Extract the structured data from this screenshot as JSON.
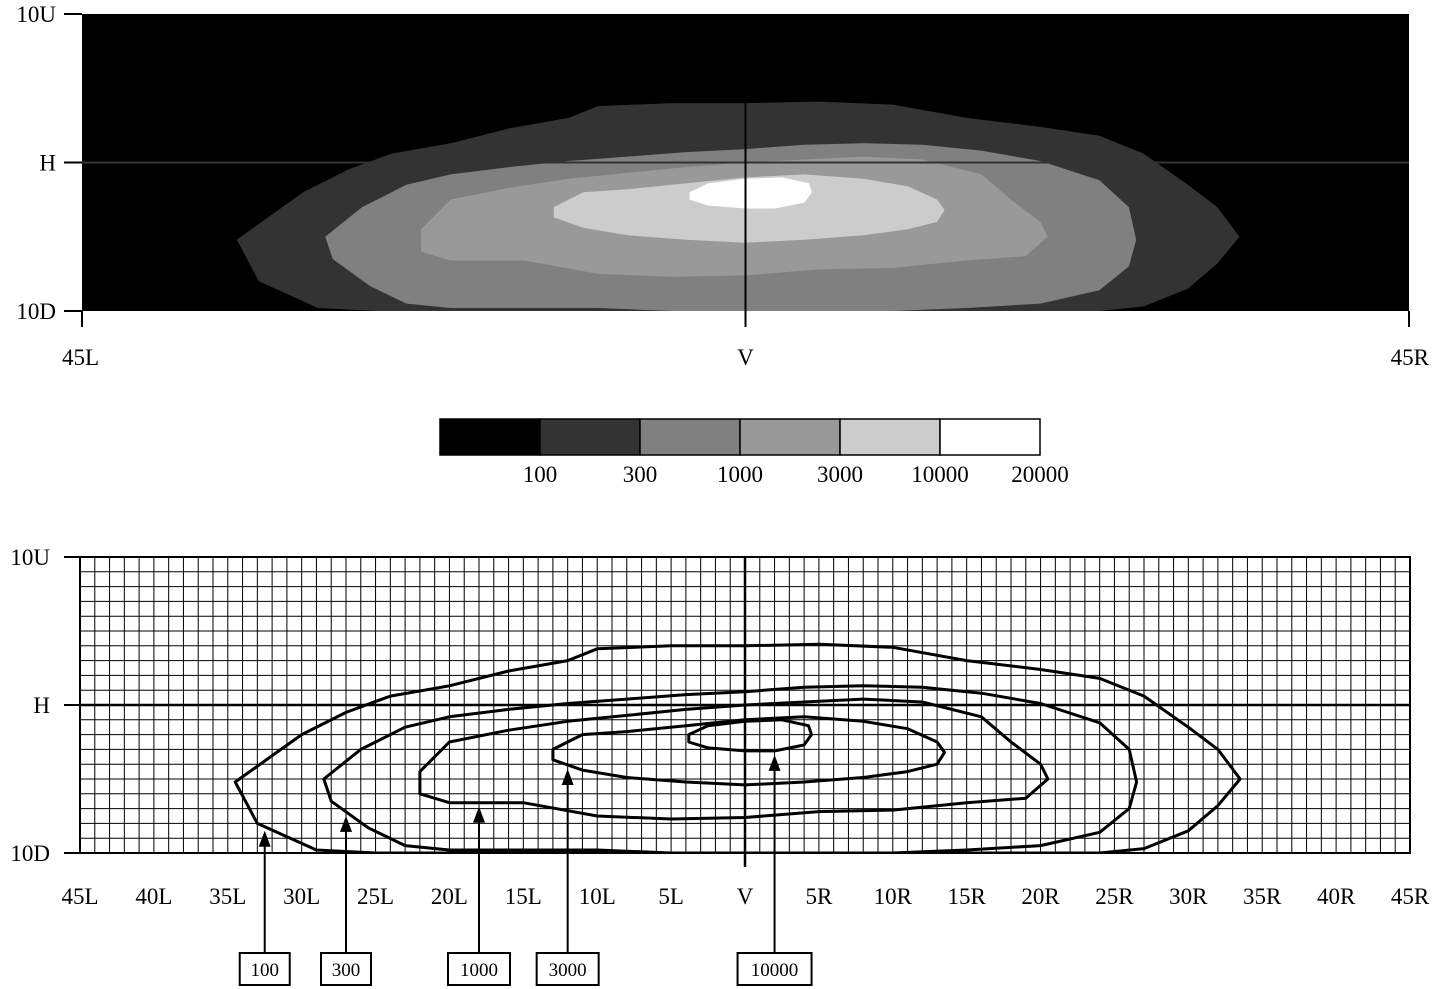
{
  "chart_data": [
    {
      "type": "heatmap",
      "title": "",
      "xlabel": "",
      "ylabel": "",
      "x_range_deg": [
        -45,
        45
      ],
      "y_range_deg": [
        -10,
        10
      ],
      "x_tick_labels": [
        "45L",
        "V",
        "45R"
      ],
      "y_tick_labels": [
        "10U",
        "H",
        "10D"
      ],
      "color_scale": {
        "thresholds": [
          "100",
          "300",
          "1000",
          "3000",
          "10000",
          "20000"
        ],
        "colors": [
          "#000000",
          "#333333",
          "#808080",
          "#999999",
          "#cccccc",
          "#ffffff"
        ]
      },
      "levels": [
        {
          "value": 100,
          "color": "#333333",
          "x": [
            -34.5,
            -30,
            -27,
            -24,
            -20,
            -16,
            -12,
            -10,
            -5,
            0,
            5,
            10,
            15,
            20,
            24,
            27,
            30,
            32,
            33.5,
            32,
            30,
            27,
            24,
            20,
            15,
            10,
            5,
            0,
            -5,
            -10,
            -15,
            -20,
            -25,
            -29,
            -33
          ],
          "y": [
            -5.2,
            -2.0,
            -0.5,
            0.6,
            1.3,
            2.3,
            3.0,
            3.8,
            4.0,
            4.0,
            4.1,
            3.9,
            3.0,
            2.4,
            1.8,
            0.6,
            -1.5,
            -3.0,
            -5.0,
            -6.8,
            -8.5,
            -9.7,
            -10,
            -10,
            -10,
            -10,
            -10,
            -10,
            -10,
            -10,
            -10,
            -10,
            -10,
            -9.8,
            -8.0
          ]
        },
        {
          "value": 300,
          "color": "#808080",
          "x": [
            -28.5,
            -26,
            -23,
            -20,
            -16,
            -12,
            -8,
            -4,
            0,
            4,
            8,
            12,
            16,
            20,
            24,
            26,
            26.5,
            26,
            24,
            20,
            15,
            10,
            5,
            0,
            -5,
            -10,
            -15,
            -20,
            -23,
            -25.5,
            -28
          ],
          "y": [
            -5.0,
            -3.0,
            -1.5,
            -0.8,
            -0.3,
            0.1,
            0.4,
            0.7,
            0.9,
            1.2,
            1.3,
            1.2,
            0.8,
            0.1,
            -1.2,
            -3.0,
            -5.2,
            -7.0,
            -8.6,
            -9.5,
            -9.8,
            -10,
            -10,
            -10,
            -10,
            -9.8,
            -9.8,
            -9.8,
            -9.5,
            -8.3,
            -6.5
          ]
        },
        {
          "value": 1000,
          "color": "#999999",
          "x": [
            -22,
            -20,
            -16,
            -12,
            -8,
            -4,
            0,
            4,
            8,
            12,
            16,
            18,
            20,
            20.5,
            19,
            15,
            10,
            5,
            0,
            -5,
            -10,
            -15,
            -20,
            -22
          ],
          "y": [
            -4.5,
            -2.5,
            -1.7,
            -1.1,
            -0.7,
            -0.3,
            0.0,
            0.2,
            0.4,
            0.2,
            -0.8,
            -2.5,
            -4.0,
            -5.0,
            -6.3,
            -6.6,
            -7.1,
            -7.2,
            -7.6,
            -7.7,
            -7.5,
            -6.6,
            -6.6,
            -6.0
          ]
        },
        {
          "value": 3000,
          "color": "#cccccc",
          "x": [
            -13,
            -11,
            -8,
            -4,
            0,
            4,
            8,
            11,
            13,
            13.5,
            13,
            11,
            8,
            4,
            0,
            -4,
            -8,
            -11,
            -13
          ],
          "y": [
            -3.0,
            -2.0,
            -1.8,
            -1.4,
            -1.0,
            -0.8,
            -1.1,
            -1.6,
            -2.5,
            -3.2,
            -4.0,
            -4.5,
            -4.9,
            -5.2,
            -5.4,
            -5.2,
            -4.9,
            -4.4,
            -3.7
          ]
        },
        {
          "value": 10000,
          "color": "#ffffff",
          "x": [
            -3.8,
            -2.5,
            0,
            2.5,
            4.3,
            4.5,
            4.0,
            2.0,
            0,
            -2.5,
            -3.8
          ],
          "y": [
            -2.0,
            -1.4,
            -1.1,
            -1.0,
            -1.4,
            -2.0,
            -2.7,
            -3.1,
            -3.1,
            -2.9,
            -2.5
          ]
        }
      ]
    },
    {
      "type": "contour",
      "title": "",
      "xlabel": "",
      "ylabel": "",
      "x_range_deg": [
        -45,
        45
      ],
      "y_range_deg": [
        -10,
        10
      ],
      "x_tick_labels": [
        "45L",
        "40L",
        "35L",
        "30L",
        "25L",
        "20L",
        "15L",
        "10L",
        "5L",
        "V",
        "5R",
        "10R",
        "15R",
        "20R",
        "25R",
        "30R",
        "35R",
        "40R",
        "45R"
      ],
      "y_tick_labels": [
        "10U",
        "H",
        "10D"
      ],
      "grid": true,
      "contour_labels": [
        {
          "text": "100",
          "arrow_x_deg": -32.5
        },
        {
          "text": "300",
          "arrow_x_deg": -27
        },
        {
          "text": "1000",
          "arrow_x_deg": -18
        },
        {
          "text": "3000",
          "arrow_x_deg": -12
        },
        {
          "text": "10000",
          "arrow_x_deg": 2
        }
      ]
    }
  ]
}
